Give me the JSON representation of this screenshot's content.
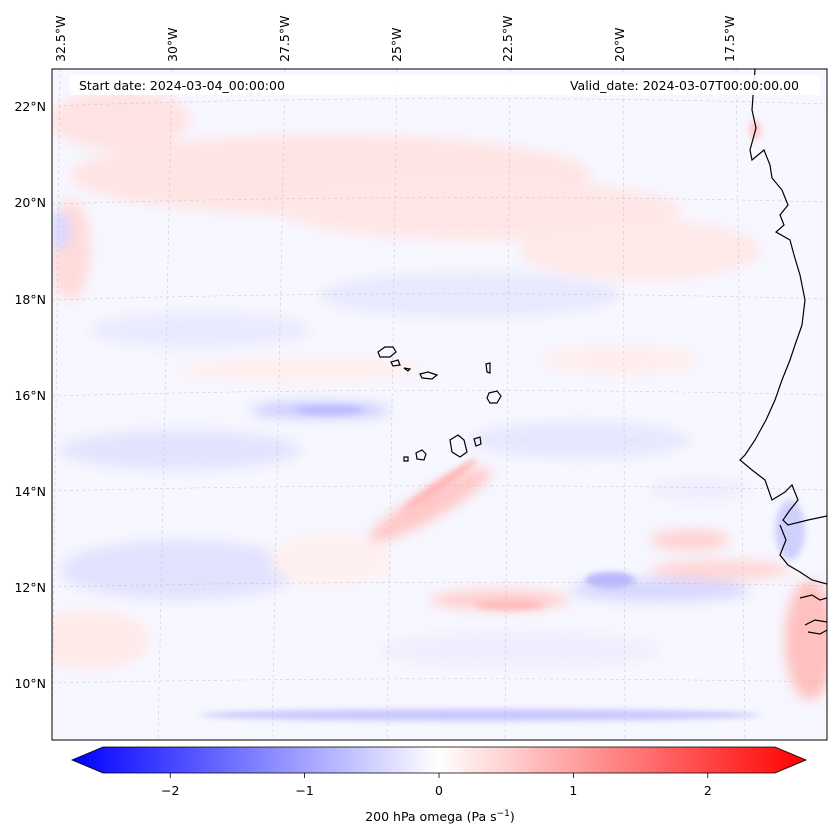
{
  "map": {
    "start_date_label": "Start date: 2024-03-04_00:00:00",
    "valid_date_label": "Valid_date: 2024-03-07T00:00:00.00",
    "lon_labels": [
      "32.5°W",
      "30°W",
      "27.5°W",
      "25°W",
      "22.5°W",
      "20°W",
      "17.5°W"
    ],
    "lat_labels": [
      "22°N",
      "20°N",
      "18°N",
      "16°N",
      "14°N",
      "12°N",
      "10°N"
    ],
    "gridlines": true,
    "field": "200 hPa vertical velocity (omega) shading, blue negative, red positive"
  },
  "colorbar": {
    "ticks": [
      "−2",
      "−1",
      "0",
      "1",
      "2"
    ],
    "tick_values": [
      -2,
      -1,
      0,
      1,
      2
    ],
    "range": [
      -2.5,
      2.5
    ],
    "extend": "both",
    "label": "200 hPa omega (Pa s",
    "label_exponent": "−1",
    "label_close": ")",
    "colors": {
      "min": "#0000ff",
      "mid": "#ffffff",
      "max": "#ff0000"
    }
  }
}
